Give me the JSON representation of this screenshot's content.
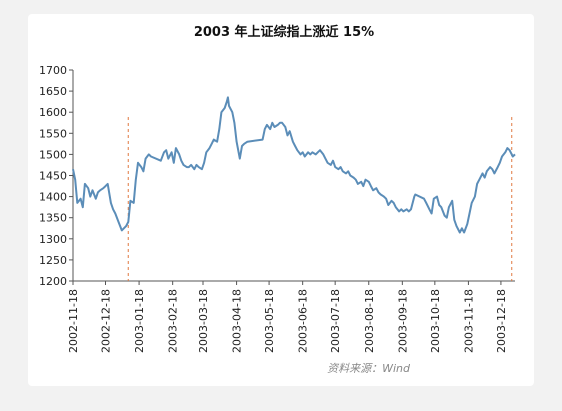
{
  "chart_data": {
    "type": "line",
    "title": "2003 年上证综指上涨近 15%",
    "source": "资料来源：Wind",
    "ylim": [
      1200,
      1700
    ],
    "y_ticks": [
      1200,
      1250,
      1300,
      1350,
      1400,
      1450,
      1500,
      1550,
      1600,
      1650,
      1700
    ],
    "x_ticks": [
      "2002-11-18",
      "2002-12-18",
      "2003-01-18",
      "2003-02-18",
      "2003-03-18",
      "2003-04-18",
      "2003-05-18",
      "2003-06-18",
      "2003-07-18",
      "2003-08-18",
      "2003-09-18",
      "2003-10-18",
      "2003-11-18",
      "2003-12-18"
    ],
    "x_range": [
      "2002-11-18",
      "2003-12-31"
    ],
    "grid": false,
    "line_color": "#5b8db8",
    "marker_color": "#e07840",
    "markers": [
      "2003-01-08",
      "2003-12-28"
    ],
    "series": [
      {
        "points": [
          [
            "2002-11-18",
            1465
          ],
          [
            "2002-11-20",
            1440
          ],
          [
            "2002-11-22",
            1385
          ],
          [
            "2002-11-25",
            1395
          ],
          [
            "2002-11-27",
            1375
          ],
          [
            "2002-11-29",
            1430
          ],
          [
            "2002-12-02",
            1420
          ],
          [
            "2002-12-04",
            1400
          ],
          [
            "2002-12-06",
            1415
          ],
          [
            "2002-12-09",
            1395
          ],
          [
            "2002-12-11",
            1410
          ],
          [
            "2002-12-13",
            1415
          ],
          [
            "2002-12-16",
            1420
          ],
          [
            "2002-12-18",
            1425
          ],
          [
            "2002-12-20",
            1430
          ],
          [
            "2002-12-23",
            1385
          ],
          [
            "2002-12-25",
            1370
          ],
          [
            "2002-12-27",
            1360
          ],
          [
            "2002-12-30",
            1340
          ],
          [
            "2003-01-02",
            1320
          ],
          [
            "2003-01-06",
            1330
          ],
          [
            "2003-01-08",
            1340
          ],
          [
            "2003-01-10",
            1390
          ],
          [
            "2003-01-13",
            1385
          ],
          [
            "2003-01-15",
            1440
          ],
          [
            "2003-01-17",
            1480
          ],
          [
            "2003-01-20",
            1470
          ],
          [
            "2003-01-22",
            1460
          ],
          [
            "2003-01-24",
            1490
          ],
          [
            "2003-01-27",
            1500
          ],
          [
            "2003-01-29",
            1495
          ],
          [
            "2003-02-07",
            1485
          ],
          [
            "2003-02-10",
            1505
          ],
          [
            "2003-02-12",
            1510
          ],
          [
            "2003-02-14",
            1490
          ],
          [
            "2003-02-17",
            1505
          ],
          [
            "2003-02-19",
            1480
          ],
          [
            "2003-02-21",
            1515
          ],
          [
            "2003-02-24",
            1500
          ],
          [
            "2003-02-26",
            1485
          ],
          [
            "2003-02-28",
            1475
          ],
          [
            "2003-03-03",
            1470
          ],
          [
            "2003-03-05",
            1470
          ],
          [
            "2003-03-07",
            1475
          ],
          [
            "2003-03-10",
            1465
          ],
          [
            "2003-03-12",
            1475
          ],
          [
            "2003-03-14",
            1470
          ],
          [
            "2003-03-17",
            1465
          ],
          [
            "2003-03-19",
            1480
          ],
          [
            "2003-03-21",
            1505
          ],
          [
            "2003-03-24",
            1515
          ],
          [
            "2003-03-26",
            1525
          ],
          [
            "2003-03-28",
            1535
          ],
          [
            "2003-03-31",
            1530
          ],
          [
            "2003-04-02",
            1560
          ],
          [
            "2003-04-04",
            1600
          ],
          [
            "2003-04-07",
            1610
          ],
          [
            "2003-04-09",
            1625
          ],
          [
            "2003-04-10",
            1635
          ],
          [
            "2003-04-11",
            1615
          ],
          [
            "2003-04-14",
            1600
          ],
          [
            "2003-04-16",
            1575
          ],
          [
            "2003-04-18",
            1530
          ],
          [
            "2003-04-21",
            1490
          ],
          [
            "2003-04-23",
            1520
          ],
          [
            "2003-04-25",
            1525
          ],
          [
            "2003-04-28",
            1530
          ],
          [
            "2003-05-12",
            1535
          ],
          [
            "2003-05-14",
            1560
          ],
          [
            "2003-05-16",
            1570
          ],
          [
            "2003-05-19",
            1560
          ],
          [
            "2003-05-21",
            1575
          ],
          [
            "2003-05-23",
            1565
          ],
          [
            "2003-05-26",
            1570
          ],
          [
            "2003-05-28",
            1575
          ],
          [
            "2003-05-30",
            1575
          ],
          [
            "2003-06-02",
            1565
          ],
          [
            "2003-06-04",
            1545
          ],
          [
            "2003-06-06",
            1555
          ],
          [
            "2003-06-09",
            1530
          ],
          [
            "2003-06-11",
            1520
          ],
          [
            "2003-06-13",
            1510
          ],
          [
            "2003-06-16",
            1500
          ],
          [
            "2003-06-18",
            1505
          ],
          [
            "2003-06-20",
            1495
          ],
          [
            "2003-06-23",
            1505
          ],
          [
            "2003-06-25",
            1500
          ],
          [
            "2003-06-27",
            1505
          ],
          [
            "2003-06-30",
            1500
          ],
          [
            "2003-07-02",
            1505
          ],
          [
            "2003-07-04",
            1510
          ],
          [
            "2003-07-07",
            1500
          ],
          [
            "2003-07-09",
            1490
          ],
          [
            "2003-07-11",
            1480
          ],
          [
            "2003-07-14",
            1475
          ],
          [
            "2003-07-16",
            1485
          ],
          [
            "2003-07-18",
            1470
          ],
          [
            "2003-07-21",
            1465
          ],
          [
            "2003-07-23",
            1470
          ],
          [
            "2003-07-25",
            1460
          ],
          [
            "2003-07-28",
            1455
          ],
          [
            "2003-07-30",
            1460
          ],
          [
            "2003-08-01",
            1450
          ],
          [
            "2003-08-04",
            1445
          ],
          [
            "2003-08-06",
            1440
          ],
          [
            "2003-08-08",
            1430
          ],
          [
            "2003-08-11",
            1435
          ],
          [
            "2003-08-13",
            1425
          ],
          [
            "2003-08-15",
            1440
          ],
          [
            "2003-08-18",
            1435
          ],
          [
            "2003-08-20",
            1425
          ],
          [
            "2003-08-22",
            1415
          ],
          [
            "2003-08-25",
            1420
          ],
          [
            "2003-08-27",
            1410
          ],
          [
            "2003-08-29",
            1405
          ],
          [
            "2003-09-01",
            1400
          ],
          [
            "2003-09-03",
            1395
          ],
          [
            "2003-09-05",
            1380
          ],
          [
            "2003-09-08",
            1390
          ],
          [
            "2003-09-10",
            1385
          ],
          [
            "2003-09-12",
            1375
          ],
          [
            "2003-09-15",
            1365
          ],
          [
            "2003-09-17",
            1370
          ],
          [
            "2003-09-19",
            1365
          ],
          [
            "2003-09-22",
            1370
          ],
          [
            "2003-09-24",
            1365
          ],
          [
            "2003-09-26",
            1370
          ],
          [
            "2003-09-29",
            1400
          ],
          [
            "2003-09-30",
            1405
          ],
          [
            "2003-10-08",
            1395
          ],
          [
            "2003-10-10",
            1385
          ],
          [
            "2003-10-13",
            1370
          ],
          [
            "2003-10-15",
            1360
          ],
          [
            "2003-10-17",
            1395
          ],
          [
            "2003-10-20",
            1400
          ],
          [
            "2003-10-22",
            1380
          ],
          [
            "2003-10-24",
            1375
          ],
          [
            "2003-10-27",
            1355
          ],
          [
            "2003-10-29",
            1350
          ],
          [
            "2003-10-31",
            1375
          ],
          [
            "2003-11-03",
            1390
          ],
          [
            "2003-11-05",
            1345
          ],
          [
            "2003-11-07",
            1330
          ],
          [
            "2003-11-10",
            1315
          ],
          [
            "2003-11-12",
            1325
          ],
          [
            "2003-11-14",
            1315
          ],
          [
            "2003-11-17",
            1335
          ],
          [
            "2003-11-19",
            1360
          ],
          [
            "2003-11-21",
            1385
          ],
          [
            "2003-11-24",
            1400
          ],
          [
            "2003-11-26",
            1430
          ],
          [
            "2003-11-28",
            1440
          ],
          [
            "2003-12-01",
            1455
          ],
          [
            "2003-12-03",
            1445
          ],
          [
            "2003-12-05",
            1460
          ],
          [
            "2003-12-08",
            1470
          ],
          [
            "2003-12-10",
            1465
          ],
          [
            "2003-12-12",
            1455
          ],
          [
            "2003-12-15",
            1470
          ],
          [
            "2003-12-17",
            1480
          ],
          [
            "2003-12-19",
            1495
          ],
          [
            "2003-12-22",
            1505
          ],
          [
            "2003-12-24",
            1515
          ],
          [
            "2003-12-26",
            1510
          ],
          [
            "2003-12-29",
            1495
          ],
          [
            "2003-12-31",
            1500
          ]
        ]
      }
    ]
  }
}
